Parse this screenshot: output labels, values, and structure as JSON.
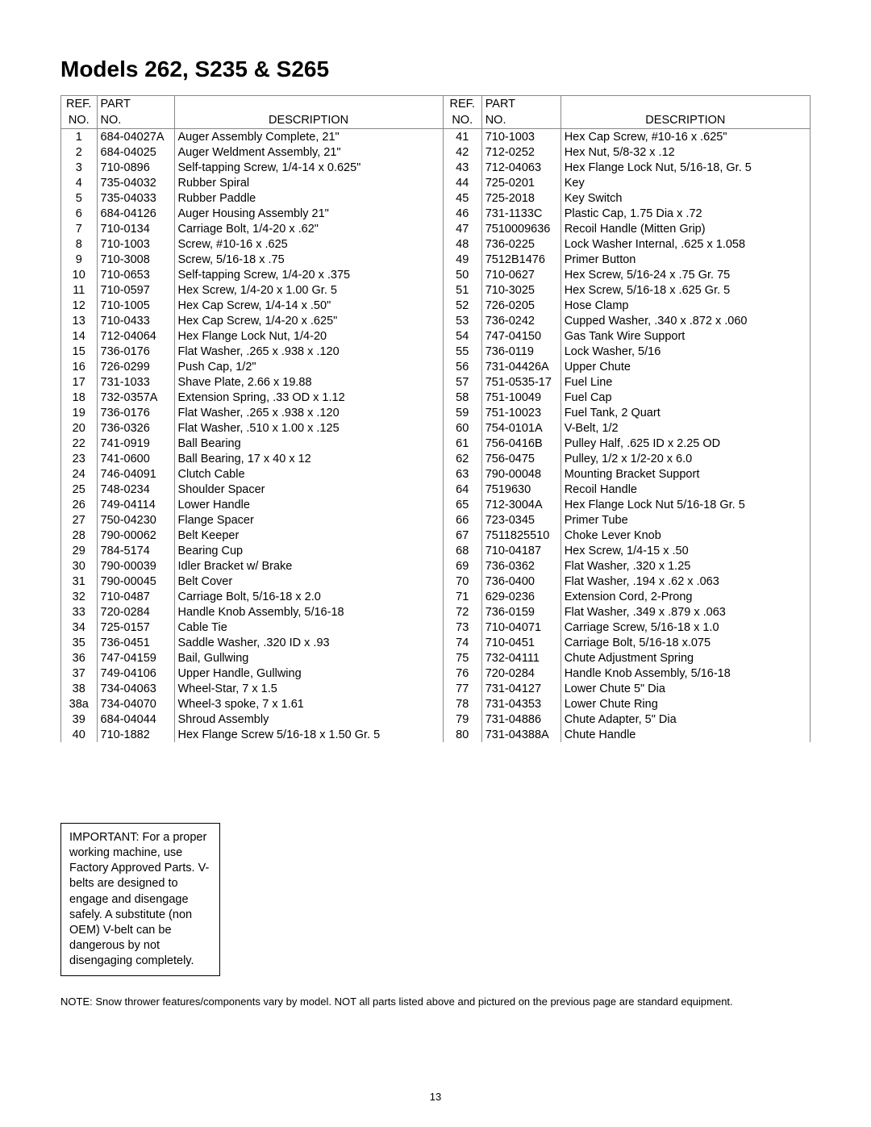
{
  "title": "Models 262, S235 & S265",
  "headers": {
    "ref_line1": "REF.",
    "ref_line2": "NO.",
    "part_line1": "PART",
    "part_line2": "NO.",
    "desc": "DESCRIPTION"
  },
  "left_rows": [
    {
      "ref": "1",
      "part": "684-04027A",
      "desc": "Auger Assembly Complete, 21\""
    },
    {
      "ref": "2",
      "part": "684-04025",
      "desc": "Auger Weldment Assembly, 21\""
    },
    {
      "ref": "3",
      "part": "710-0896",
      "desc": "Self-tapping Screw, 1/4-14 x 0.625\""
    },
    {
      "ref": "4",
      "part": "735-04032",
      "desc": "Rubber Spiral"
    },
    {
      "ref": "5",
      "part": "735-04033",
      "desc": "Rubber Paddle"
    },
    {
      "ref": "6",
      "part": "684-04126",
      "desc": "Auger Housing Assembly 21\""
    },
    {
      "ref": "7",
      "part": "710-0134",
      "desc": "Carriage Bolt, 1/4-20 x .62\""
    },
    {
      "ref": "8",
      "part": "710-1003",
      "desc": "Screw, #10-16 x .625"
    },
    {
      "ref": "9",
      "part": "710-3008",
      "desc": "Screw, 5/16-18 x .75"
    },
    {
      "ref": "10",
      "part": "710-0653",
      "desc": "Self-tapping Screw, 1/4-20 x .375"
    },
    {
      "ref": "11",
      "part": "710-0597",
      "desc": "Hex Screw, 1/4-20 x 1.00 Gr. 5"
    },
    {
      "ref": "12",
      "part": "710-1005",
      "desc": "Hex Cap Screw, 1/4-14 x .50\""
    },
    {
      "ref": "13",
      "part": "710-0433",
      "desc": "Hex Cap Screw, 1/4-20 x .625\""
    },
    {
      "ref": "14",
      "part": "712-04064",
      "desc": "Hex Flange Lock Nut, 1/4-20"
    },
    {
      "ref": "15",
      "part": "736-0176",
      "desc": "Flat Washer, .265 x .938 x .120"
    },
    {
      "ref": "16",
      "part": "726-0299",
      "desc": "Push Cap, 1/2\""
    },
    {
      "ref": "17",
      "part": "731-1033",
      "desc": "Shave Plate, 2.66 x 19.88"
    },
    {
      "ref": "18",
      "part": "732-0357A",
      "desc": "Extension Spring, .33 OD x 1.12"
    },
    {
      "ref": "19",
      "part": "736-0176",
      "desc": "Flat Washer, .265 x .938 x .120"
    },
    {
      "ref": "20",
      "part": "736-0326",
      "desc": "Flat Washer, .510 x 1.00 x .125"
    },
    {
      "ref": "22",
      "part": "741-0919",
      "desc": "Ball Bearing"
    },
    {
      "ref": "23",
      "part": "741-0600",
      "desc": "Ball Bearing, 17 x 40 x 12"
    },
    {
      "ref": "24",
      "part": "746-04091",
      "desc": "Clutch Cable"
    },
    {
      "ref": "25",
      "part": "748-0234",
      "desc": "Shoulder Spacer"
    },
    {
      "ref": "26",
      "part": "749-04114",
      "desc": "Lower Handle"
    },
    {
      "ref": "27",
      "part": "750-04230",
      "desc": "Flange Spacer"
    },
    {
      "ref": "28",
      "part": "790-00062",
      "desc": "Belt Keeper"
    },
    {
      "ref": "29",
      "part": "784-5174",
      "desc": "Bearing Cup"
    },
    {
      "ref": "30",
      "part": "790-00039",
      "desc": "Idler Bracket w/ Brake"
    },
    {
      "ref": "31",
      "part": "790-00045",
      "desc": "Belt Cover"
    },
    {
      "ref": "32",
      "part": "710-0487",
      "desc": "Carriage Bolt, 5/16-18 x 2.0"
    },
    {
      "ref": "33",
      "part": "720-0284",
      "desc": "Handle Knob Assembly, 5/16-18"
    },
    {
      "ref": "34",
      "part": "725-0157",
      "desc": "Cable Tie"
    },
    {
      "ref": "35",
      "part": "736-0451",
      "desc": "Saddle Washer, .320 ID x .93"
    },
    {
      "ref": "36",
      "part": "747-04159",
      "desc": "Bail, Gullwing"
    },
    {
      "ref": "37",
      "part": "749-04106",
      "desc": "Upper Handle, Gullwing"
    },
    {
      "ref": "38",
      "part": "734-04063",
      "desc": "Wheel-Star, 7 x 1.5"
    },
    {
      "ref": "38a",
      "part": "734-04070",
      "desc": "Wheel-3 spoke, 7 x 1.61"
    },
    {
      "ref": "39",
      "part": "684-04044",
      "desc": "Shroud Assembly"
    },
    {
      "ref": "40",
      "part": "710-1882",
      "desc": "Hex Flange Screw 5/16-18 x 1.50 Gr. 5"
    }
  ],
  "right_rows": [
    {
      "ref": "41",
      "part": "710-1003",
      "desc": "Hex Cap Screw, #10-16 x .625\""
    },
    {
      "ref": "42",
      "part": "712-0252",
      "desc": "Hex Nut, 5/8-32 x .12"
    },
    {
      "ref": "43",
      "part": "712-04063",
      "desc": "Hex Flange Lock Nut, 5/16-18, Gr. 5"
    },
    {
      "ref": "44",
      "part": "725-0201",
      "desc": "Key"
    },
    {
      "ref": "45",
      "part": "725-2018",
      "desc": "Key Switch"
    },
    {
      "ref": "46",
      "part": "731-1133C",
      "desc": "Plastic Cap, 1.75 Dia x .72"
    },
    {
      "ref": "47",
      "part": "7510009636",
      "desc": "Recoil Handle (Mitten Grip)"
    },
    {
      "ref": "48",
      "part": "736-0225",
      "desc": "Lock Washer Internal, .625 x 1.058"
    },
    {
      "ref": "49",
      "part": "7512B1476",
      "desc": "Primer Button"
    },
    {
      "ref": "50",
      "part": "710-0627",
      "desc": "Hex Screw, 5/16-24 x .75 Gr. 75"
    },
    {
      "ref": "51",
      "part": "710-3025",
      "desc": "Hex Screw, 5/16-18 x .625 Gr. 5"
    },
    {
      "ref": "52",
      "part": "726-0205",
      "desc": "Hose Clamp"
    },
    {
      "ref": "53",
      "part": "736-0242",
      "desc": "Cupped Washer, .340 x .872 x .060"
    },
    {
      "ref": "54",
      "part": "747-04150",
      "desc": "Gas Tank Wire Support"
    },
    {
      "ref": "55",
      "part": "736-0119",
      "desc": "Lock Washer, 5/16"
    },
    {
      "ref": "56",
      "part": "731-04426A",
      "desc": "Upper Chute"
    },
    {
      "ref": "57",
      "part": "751-0535-17",
      "desc": "Fuel Line"
    },
    {
      "ref": "58",
      "part": "751-10049",
      "desc": "Fuel Cap"
    },
    {
      "ref": "59",
      "part": "751-10023",
      "desc": "Fuel Tank, 2 Quart"
    },
    {
      "ref": "60",
      "part": "754-0101A",
      "desc": "V-Belt, 1/2"
    },
    {
      "ref": "61",
      "part": "756-0416B",
      "desc": "Pulley Half, .625 ID x 2.25 OD"
    },
    {
      "ref": "62",
      "part": "756-0475",
      "desc": "Pulley, 1/2  x 1/2-20 x 6.0"
    },
    {
      "ref": "63",
      "part": "790-00048",
      "desc": "Mounting Bracket Support"
    },
    {
      "ref": "64",
      "part": "7519630",
      "desc": "Recoil Handle"
    },
    {
      "ref": "65",
      "part": "712-3004A",
      "desc": "Hex Flange Lock Nut 5/16-18 Gr. 5"
    },
    {
      "ref": "66",
      "part": "723-0345",
      "desc": "Primer Tube"
    },
    {
      "ref": "67",
      "part": "7511825510",
      "desc": "Choke Lever Knob"
    },
    {
      "ref": "68",
      "part": "710-04187",
      "desc": "Hex Screw, 1/4-15 x .50"
    },
    {
      "ref": "69",
      "part": "736-0362",
      "desc": "Flat Washer, .320 x 1.25"
    },
    {
      "ref": "70",
      "part": "736-0400",
      "desc": "Flat Washer, .194 x .62 x .063"
    },
    {
      "ref": "71",
      "part": "629-0236",
      "desc": "Extension Cord, 2-Prong"
    },
    {
      "ref": "72",
      "part": "736-0159",
      "desc": "Flat Washer, .349 x .879 x .063"
    },
    {
      "ref": "73",
      "part": "710-04071",
      "desc": "Carriage Screw, 5/16-18 x 1.0"
    },
    {
      "ref": "74",
      "part": "710-0451",
      "desc": "Carriage Bolt, 5/16-18 x.075"
    },
    {
      "ref": "75",
      "part": "732-04111",
      "desc": "Chute Adjustment Spring"
    },
    {
      "ref": "76",
      "part": "720-0284",
      "desc": "Handle Knob Assembly, 5/16-18"
    },
    {
      "ref": "77",
      "part": "731-04127",
      "desc": "Lower Chute 5\" Dia"
    },
    {
      "ref": "78",
      "part": "731-04353",
      "desc": "Lower Chute Ring"
    },
    {
      "ref": "79",
      "part": "731-04886",
      "desc": "Chute Adapter, 5\" Dia"
    },
    {
      "ref": "80",
      "part": "731-04388A",
      "desc": "Chute Handle"
    }
  ],
  "note_box": "IMPORTANT: For a proper working machine, use Factory Approved Parts. V-belts  are designed to engage and disengage safely. A substitute (non OEM) V-belt can be dangerous by not disengaging completely.",
  "footer_note": "NOTE: Snow thrower features/components vary by model. NOT all parts listed above and pictured on the previous page are standard equipment.",
  "page_number": "13"
}
